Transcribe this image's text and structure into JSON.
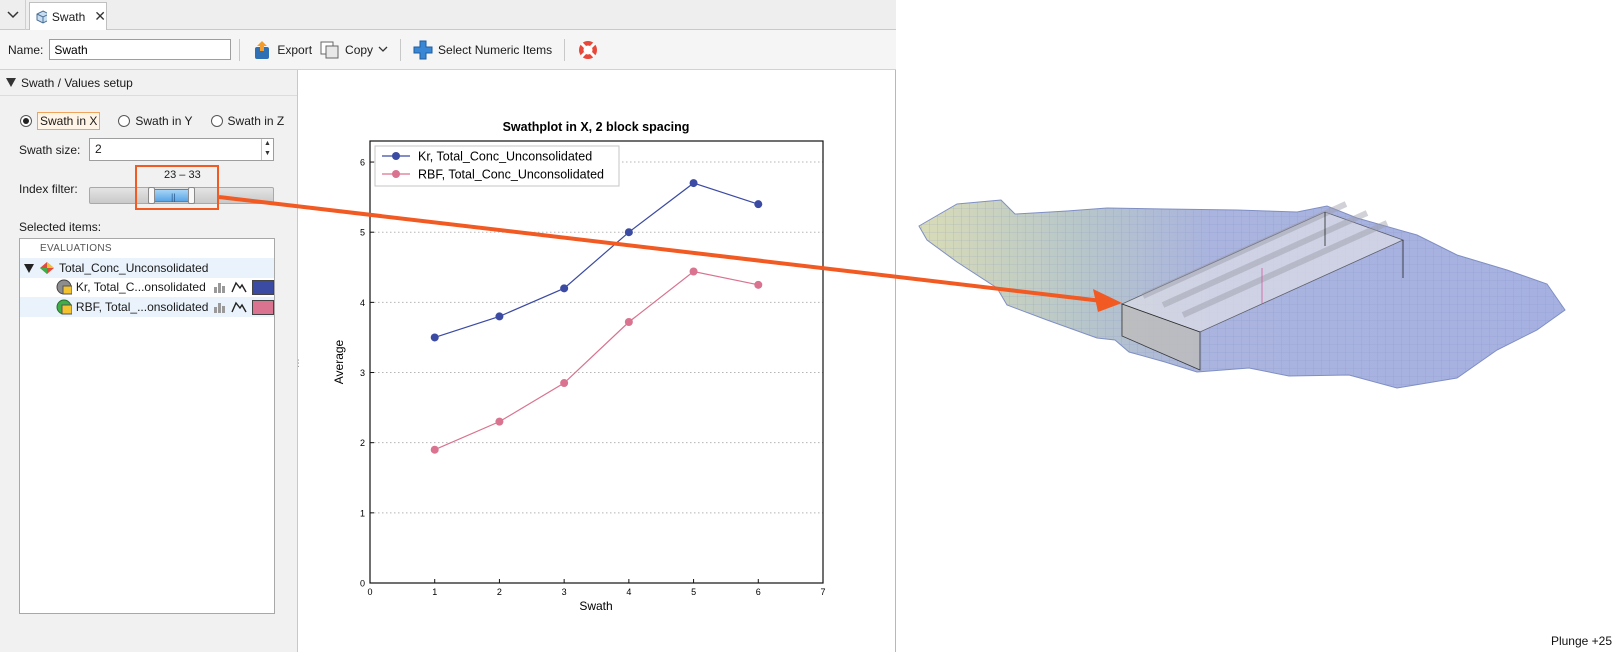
{
  "tab": {
    "title": "Swath",
    "close_glyph": "✕"
  },
  "toolbar": {
    "name_label": "Name:",
    "name_value": "Swath",
    "export_label": "Export",
    "copy_label": "Copy",
    "select_label": "Select Numeric Items"
  },
  "panel": {
    "header": "Swath / Values setup",
    "radios": [
      {
        "label": "Swath in X",
        "selected": true
      },
      {
        "label": "Swath in Y",
        "selected": false
      },
      {
        "label": "Swath in Z",
        "selected": false
      }
    ],
    "swath_size_label": "Swath size:",
    "swath_size_value": "2",
    "index_filter_label": "Index filter:",
    "index_filter_range": "23 – 33",
    "index_filter_range_values": [
      23,
      33
    ],
    "selected_items_label": "Selected items:",
    "evaluations_header": "EVALUATIONS",
    "tree": {
      "root": "Total_Conc_Unconsolidated",
      "children": [
        {
          "label": "Kr, Total_C...onsolidated",
          "color": "#3b4aa3"
        },
        {
          "label": "RBF, Total_...onsolidated",
          "color": "#d9738f"
        }
      ]
    }
  },
  "chart_data": {
    "type": "line",
    "title": "Swathplot in X, 2 block spacing",
    "xlabel": "Swath",
    "ylabel": "Average",
    "xlim": [
      0,
      7
    ],
    "ylim": [
      0,
      6.3
    ],
    "x_ticks": [
      "0",
      "1",
      "2",
      "3",
      "4",
      "5",
      "6",
      "7"
    ],
    "y_ticks": [
      "0",
      "1",
      "2",
      "3",
      "4",
      "5",
      "6"
    ],
    "grid": "horizontal dotted",
    "legend_position": "top-left",
    "series": [
      {
        "name": "Kr, Total_Conc_Unconsolidated",
        "color": "#3b4aa3",
        "x": [
          1,
          2,
          3,
          4,
          5,
          6
        ],
        "y": [
          3.5,
          3.8,
          4.2,
          5.0,
          5.7,
          5.4
        ]
      },
      {
        "name": "RBF, Total_Conc_Unconsolidated",
        "color": "#d9738f",
        "x": [
          1,
          2,
          3,
          4,
          5,
          6
        ],
        "y": [
          1.9,
          2.3,
          2.85,
          3.72,
          4.44,
          4.25
        ]
      }
    ]
  },
  "view3d": {
    "status": "Plunge +25"
  },
  "colors": {
    "annotation": "#f15a22",
    "selection_highlight": "#f0a35a"
  }
}
